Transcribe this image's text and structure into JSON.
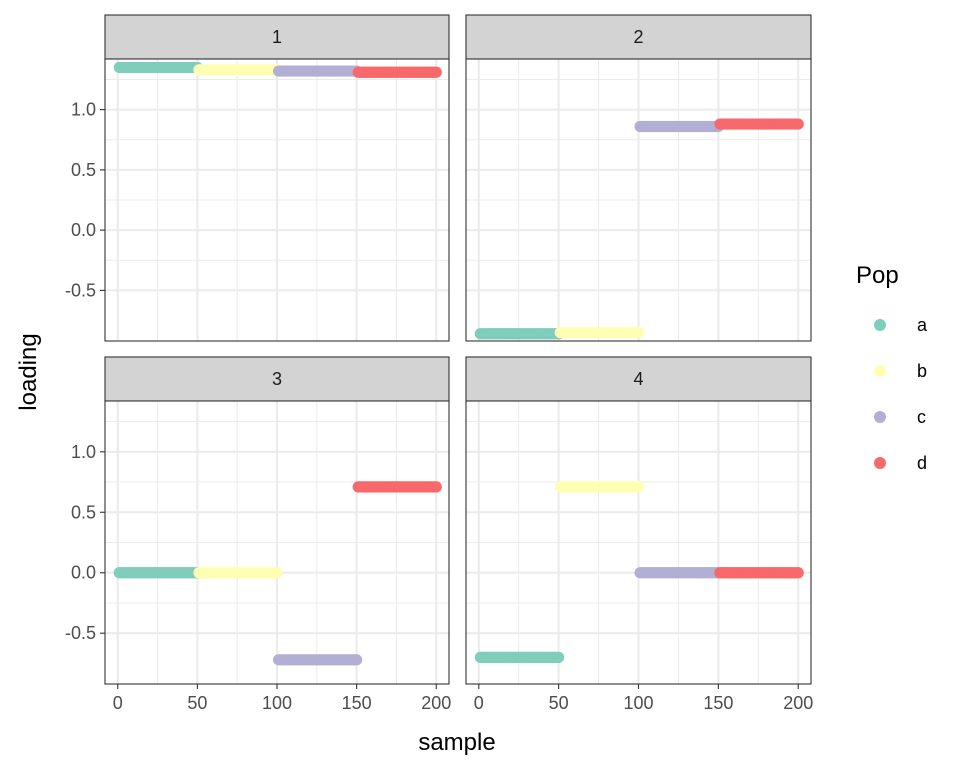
{
  "chart_data": {
    "type": "scatter",
    "facet_type": "wrap",
    "x_label": "sample",
    "y_label": "loading",
    "xlim": [
      -8,
      208
    ],
    "ylim": [
      -0.92,
      1.42
    ],
    "x_ticks": [
      0,
      50,
      100,
      150,
      200
    ],
    "x_tick_labels": [
      "0",
      "50",
      "100",
      "150",
      "200"
    ],
    "y_ticks": [
      -0.5,
      0.0,
      0.5,
      1.0
    ],
    "y_tick_labels": [
      "-0.5",
      "0.0",
      "0.5",
      "1.0"
    ],
    "grid": true,
    "legend": {
      "title": "Pop",
      "position": "right",
      "entries": [
        {
          "label": "a",
          "color": "#7fcdbb"
        },
        {
          "label": "b",
          "color": "#ffffb3"
        },
        {
          "label": "c",
          "color": "#b3aed4"
        },
        {
          "label": "d",
          "color": "#f8696b"
        }
      ]
    },
    "panels": [
      {
        "label": "1",
        "series": [
          {
            "pop": "a",
            "x_range": [
              1,
              50
            ],
            "y": 1.35
          },
          {
            "pop": "b",
            "x_range": [
              51,
              100
            ],
            "y": 1.33
          },
          {
            "pop": "c",
            "x_range": [
              101,
              150
            ],
            "y": 1.32
          },
          {
            "pop": "d",
            "x_range": [
              151,
              200
            ],
            "y": 1.31
          }
        ]
      },
      {
        "label": "2",
        "series": [
          {
            "pop": "a",
            "x_range": [
              1,
              50
            ],
            "y": -0.86
          },
          {
            "pop": "b",
            "x_range": [
              51,
              100
            ],
            "y": -0.85
          },
          {
            "pop": "c",
            "x_range": [
              101,
              150
            ],
            "y": 0.86
          },
          {
            "pop": "d",
            "x_range": [
              151,
              200
            ],
            "y": 0.88
          }
        ]
      },
      {
        "label": "3",
        "series": [
          {
            "pop": "a",
            "x_range": [
              1,
              50
            ],
            "y": 0.0
          },
          {
            "pop": "b",
            "x_range": [
              51,
              100
            ],
            "y": 0.0
          },
          {
            "pop": "c",
            "x_range": [
              101,
              150
            ],
            "y": -0.72
          },
          {
            "pop": "d",
            "x_range": [
              151,
              200
            ],
            "y": 0.71
          }
        ]
      },
      {
        "label": "4",
        "series": [
          {
            "pop": "a",
            "x_range": [
              1,
              50
            ],
            "y": -0.7
          },
          {
            "pop": "b",
            "x_range": [
              51,
              100
            ],
            "y": 0.71
          },
          {
            "pop": "c",
            "x_range": [
              101,
              150
            ],
            "y": 0.0
          },
          {
            "pop": "d",
            "x_range": [
              151,
              200
            ],
            "y": 0.0
          }
        ]
      }
    ]
  }
}
